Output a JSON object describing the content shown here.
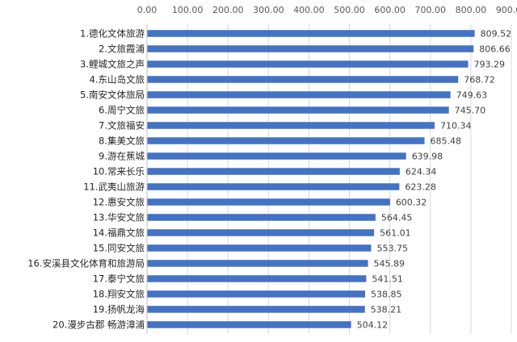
{
  "chart_data": {
    "type": "bar",
    "orientation": "horizontal",
    "title": "",
    "xlabel": "",
    "ylabel": "",
    "xlim": [
      0,
      900
    ],
    "ticks": [
      "0.00",
      "100.00",
      "200.00",
      "300.00",
      "400.00",
      "500.00",
      "600.00",
      "700.00",
      "800.00",
      "900.00"
    ],
    "tick_values": [
      0,
      100,
      200,
      300,
      400,
      500,
      600,
      700,
      800,
      900
    ],
    "grid": true,
    "x_axis_position": "top",
    "bar_color": "#4472c4",
    "categories": [
      "1.德化文体旅游",
      "2.文旅霞浦",
      "3.鲤城文旅之声",
      "4.东山岛文旅",
      "5.南安文体旅局",
      "6.周宁文旅",
      "7.文旅福安",
      "8.集美文旅",
      "9.游在蕉城",
      "10.常来长乐",
      "11.武夷山旅游",
      "12.惠安文旅",
      "13.华安文旅",
      "14.福鼎文旅",
      "15.同安文旅",
      "16.安溪县文化体育和旅游局",
      "17.泰宁文旅",
      "18.翔安文旅",
      "19.扬帆龙海",
      "20.漫步古郡 畅游漳浦"
    ],
    "values": [
      809.52,
      806.66,
      793.29,
      768.72,
      749.63,
      745.7,
      710.34,
      685.48,
      639.98,
      624.34,
      623.28,
      600.32,
      564.45,
      561.01,
      553.75,
      545.89,
      541.51,
      538.85,
      538.21,
      504.12
    ],
    "value_labels": [
      "809.52",
      "806.66",
      "793.29",
      "768.72",
      "749.63",
      "745.70",
      "710.34",
      "685.48",
      "639.98",
      "624.34",
      "623.28",
      "600.32",
      "564.45",
      "561.01",
      "553.75",
      "545.89",
      "541.51",
      "538.85",
      "538.21",
      "504.12"
    ]
  }
}
